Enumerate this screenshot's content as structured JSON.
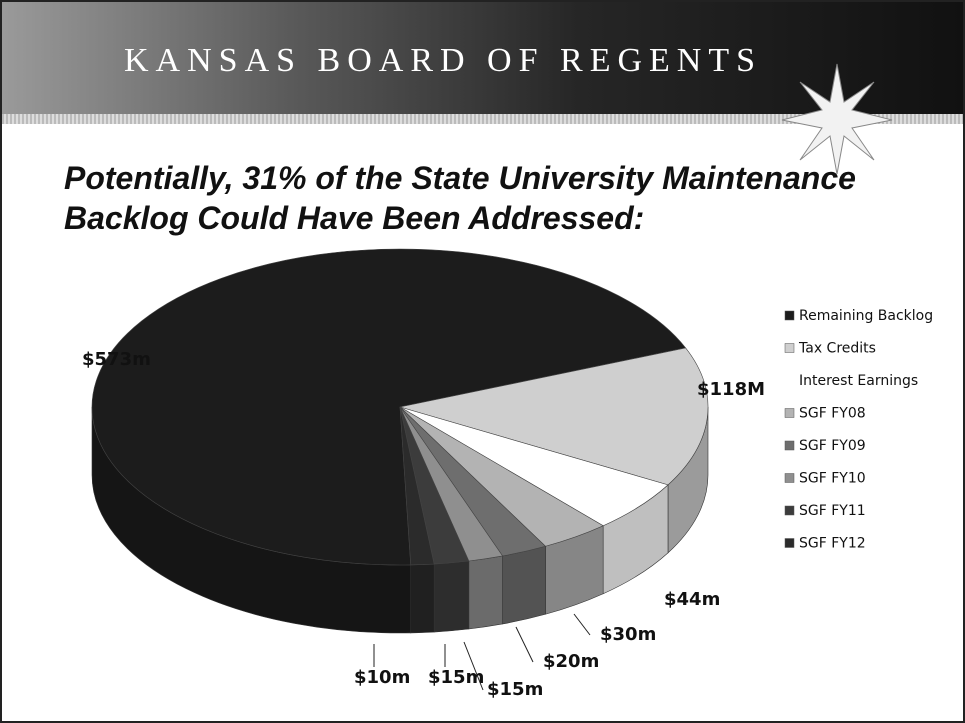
{
  "header": "KANSAS BOARD OF REGENTS",
  "chart_data": {
    "type": "pie",
    "title": "Potentially, 31% of the State University Maintenance Backlog Could Have Been Addressed:",
    "categories": [
      "Remaining Backlog",
      "Tax Credits",
      "Interest Earnings",
      "SGF FY08",
      "SGF FY09",
      "SGF FY10",
      "SGF FY11",
      "SGF FY12"
    ],
    "values": [
      573,
      118,
      44,
      30,
      20,
      15,
      15,
      10
    ],
    "value_labels": [
      "$573m",
      "$118M",
      "$44m",
      "$30m",
      "$20m",
      "$15m",
      "$15m",
      "$10m"
    ],
    "colors": [
      "#1c1c1c",
      "#cfcfcf",
      "#ffffff",
      "#b3b3b3",
      "#6e6e6e",
      "#8f8f8f",
      "#3c3c3c",
      "#2b2b2b"
    ],
    "legend": "right"
  }
}
